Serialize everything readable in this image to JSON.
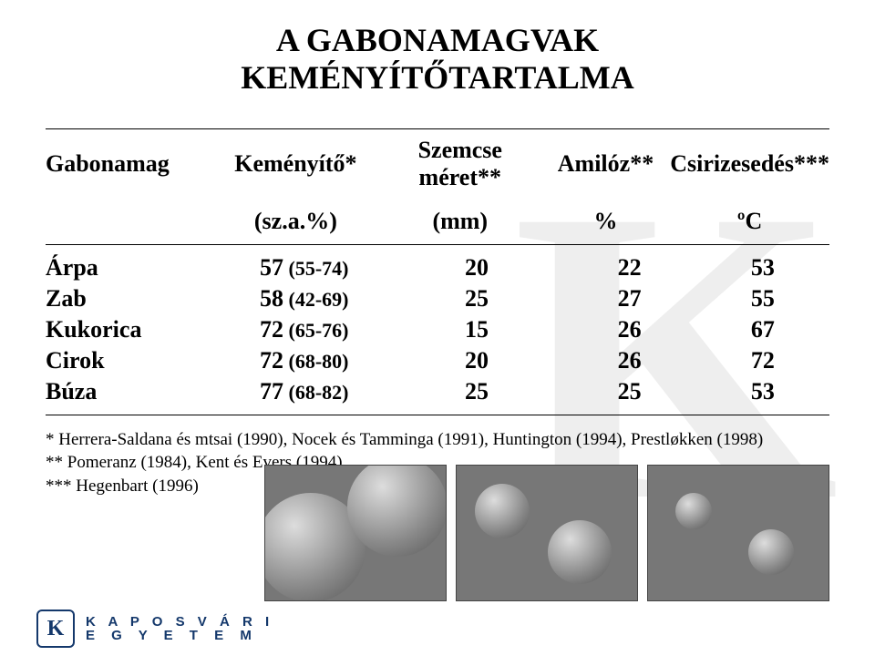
{
  "title_line1": "A GABONAMAGVAK",
  "title_line2": "KEMÉNYÍTŐTARTALMA",
  "headers": {
    "c1_top": "Gabonamag",
    "c2_top": "Keményítő*",
    "c2_sub": "(sz.a.%)",
    "c3_top": "Szemcse méret**",
    "c3_sub": "(mm)",
    "c4_top": "Amilóz**",
    "c4_sub": "%",
    "c5_top": "Csirizesedés***",
    "c5_sub": "ºC"
  },
  "rows": [
    {
      "name": "Árpa",
      "kem_main": "57",
      "kem_range": " (55-74)",
      "mm": "20",
      "amil": "22",
      "csir": "53"
    },
    {
      "name": "Zab",
      "kem_main": "58",
      "kem_range": " (42-69)",
      "mm": "25",
      "amil": "27",
      "csir": "55"
    },
    {
      "name": "Kukorica",
      "kem_main": "72",
      "kem_range": " (65-76)",
      "mm": "15",
      "amil": "26",
      "csir": "67"
    },
    {
      "name": "Cirok",
      "kem_main": "72",
      "kem_range": " (68-80)",
      "mm": "20",
      "amil": "26",
      "csir": "72"
    },
    {
      "name": "Búza",
      "kem_main": "77",
      "kem_range": " (68-82)",
      "mm": "25",
      "amil": "25",
      "csir": "53"
    }
  ],
  "refs": {
    "r1": "* Herrera-Saldana és mtsai (1990), Nocek és Tamminga (1991), Huntington (1994), Prestløkken (1998)",
    "r2": "** Pomeranz (1984), Kent és Evers (1994)",
    "r3": "*** Hegenbart (1996)"
  },
  "footer": {
    "badge": "K",
    "line1": "K A P O S V Á R I",
    "line2": "E G Y E T E M"
  },
  "colors": {
    "brand": "#14386b",
    "bg_k": "#eeeeee",
    "text": "#000000"
  }
}
